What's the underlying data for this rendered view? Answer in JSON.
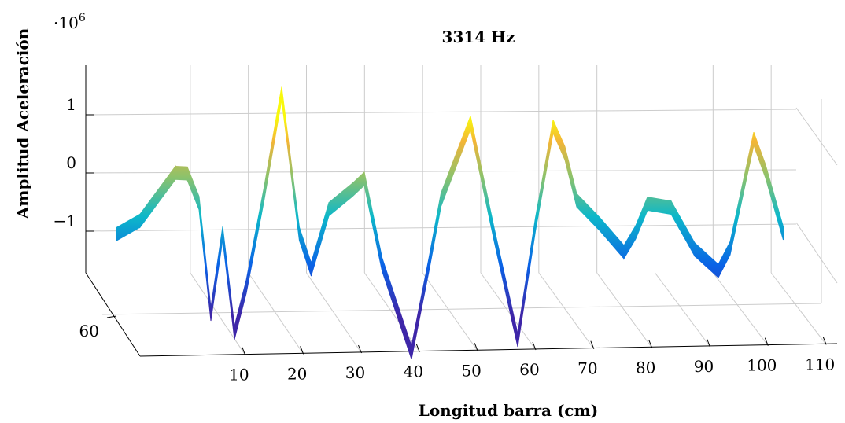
{
  "chart_data": {
    "type": "surface",
    "title": "3314 Hz",
    "xlabel": "Longitud barra (cm)",
    "ylabel": "Amplitud Aceleración",
    "exponent_base": "10",
    "exponent_power": "6",
    "x_ticks": [
      "10",
      "20",
      "30",
      "40",
      "50",
      "60",
      "70",
      "80",
      "90",
      "100",
      "110"
    ],
    "x_tick_values": [
      10,
      20,
      30,
      40,
      50,
      60,
      70,
      80,
      90,
      100,
      110
    ],
    "y_ticks": [
      "60"
    ],
    "z_ticks": [
      "1",
      "0",
      "−1"
    ],
    "z_tick_values": [
      1,
      0,
      -1
    ],
    "xlim": [
      0,
      120
    ],
    "zlim": [
      -3.5,
      1.5
    ],
    "grid": true,
    "colormap": [
      "#3e26a8",
      "#0a62e6",
      "#0db8c9",
      "#8cc26b",
      "#f3b537",
      "#f8f80d"
    ],
    "x": [
      0,
      4,
      10,
      12,
      14,
      16,
      18,
      20,
      22,
      25,
      28,
      31,
      33,
      36,
      40,
      42,
      45,
      50,
      53,
      55,
      60,
      64,
      68,
      71,
      74,
      76,
      78,
      82,
      86,
      88,
      90,
      94,
      98,
      102,
      104,
      108,
      110,
      113
    ],
    "z": [
      -1.1,
      -0.85,
      0.0,
      0.0,
      -0.5,
      -2.4,
      -1.0,
      -2.7,
      -1.9,
      -0.3,
      1.45,
      -0.95,
      -1.55,
      -0.5,
      -0.15,
      0.05,
      -1.4,
      -2.9,
      -1.35,
      -0.25,
      1.1,
      -0.8,
      -2.6,
      -0.6,
      1.1,
      0.65,
      -0.15,
      -0.55,
      -1.0,
      -0.65,
      -0.15,
      -0.2,
      -0.9,
      -1.25,
      -0.85,
      1.05,
      0.5,
      -0.55
    ]
  }
}
